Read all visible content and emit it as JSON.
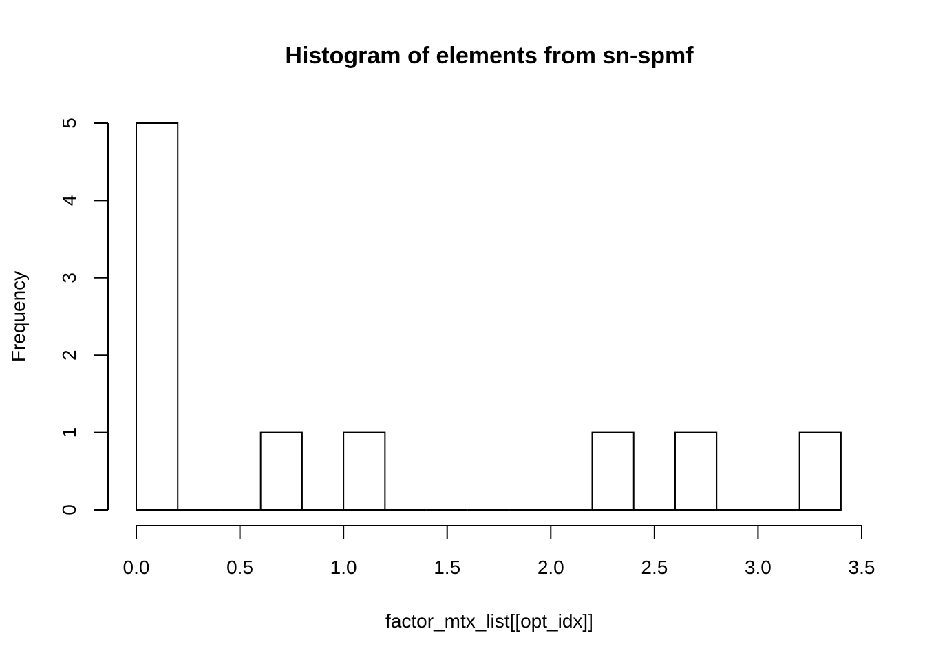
{
  "chart_data": {
    "type": "bar",
    "title": "Histogram of elements from sn-spmf",
    "xlabel": "factor_mtx_list[[opt_idx]]",
    "ylabel": "Frequency",
    "xlim": [
      0.0,
      3.5
    ],
    "ylim": [
      0,
      5
    ],
    "x_ticks": [
      "0.0",
      "0.5",
      "1.0",
      "1.5",
      "2.0",
      "2.5",
      "3.0",
      "3.5"
    ],
    "y_ticks": [
      "0",
      "1",
      "2",
      "3",
      "4",
      "5"
    ],
    "bin_width": 0.2,
    "bins": [
      {
        "x0": 0.0,
        "x1": 0.2,
        "count": 5
      },
      {
        "x0": 0.2,
        "x1": 0.4,
        "count": 0
      },
      {
        "x0": 0.4,
        "x1": 0.6,
        "count": 0
      },
      {
        "x0": 0.6,
        "x1": 0.8,
        "count": 1
      },
      {
        "x0": 0.8,
        "x1": 1.0,
        "count": 0
      },
      {
        "x0": 1.0,
        "x1": 1.2,
        "count": 1
      },
      {
        "x0": 1.2,
        "x1": 1.4,
        "count": 0
      },
      {
        "x0": 1.4,
        "x1": 1.6,
        "count": 0
      },
      {
        "x0": 1.6,
        "x1": 1.8,
        "count": 0
      },
      {
        "x0": 1.8,
        "x1": 2.0,
        "count": 0
      },
      {
        "x0": 2.0,
        "x1": 2.2,
        "count": 0
      },
      {
        "x0": 2.2,
        "x1": 2.4,
        "count": 1
      },
      {
        "x0": 2.4,
        "x1": 2.6,
        "count": 0
      },
      {
        "x0": 2.6,
        "x1": 2.8,
        "count": 1
      },
      {
        "x0": 2.8,
        "x1": 3.0,
        "count": 0
      },
      {
        "x0": 3.0,
        "x1": 3.2,
        "count": 0
      },
      {
        "x0": 3.2,
        "x1": 3.4,
        "count": 1
      }
    ],
    "bar_fill": "#ffffff",
    "bar_stroke": "#000000",
    "grid": false,
    "legend": "none"
  }
}
